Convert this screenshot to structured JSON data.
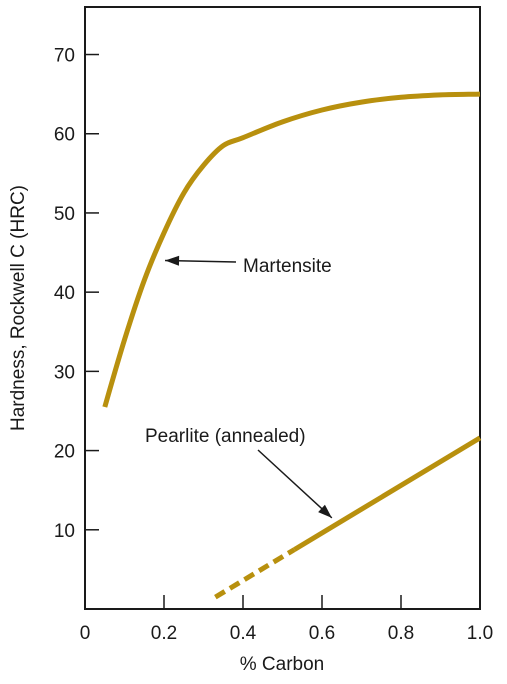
{
  "chart_data": {
    "type": "line",
    "title": "",
    "xlabel": "% Carbon",
    "ylabel": "Hardness, Rockwell C (HRC)",
    "xlim": [
      0,
      1.0
    ],
    "ylim": [
      0,
      76
    ],
    "grid": false,
    "x_ticks": [
      0,
      0.2,
      0.4,
      0.6,
      0.8,
      1.0
    ],
    "x_tick_labels": [
      "0",
      "0.2",
      "0.4",
      "0.6",
      "0.8",
      "1.0"
    ],
    "y_ticks": [
      10,
      20,
      30,
      40,
      50,
      60,
      70
    ],
    "y_tick_labels": [
      "10",
      "20",
      "30",
      "40",
      "50",
      "60",
      "70"
    ],
    "line_color": "#b8900e",
    "series": [
      {
        "name": "Martensite",
        "x": [
          0.05,
          0.1,
          0.15,
          0.2,
          0.25,
          0.3,
          0.35,
          0.4,
          0.5,
          0.6,
          0.7,
          0.8,
          0.9,
          1.0
        ],
        "y": [
          25.5,
          34,
          41.5,
          47.5,
          52.5,
          56,
          58.5,
          59.5,
          61.5,
          63,
          64,
          64.6,
          64.9,
          65
        ]
      },
      {
        "name": "Pearlite (annealed)",
        "dashed_segment": {
          "x": [
            0.33,
            0.53
          ],
          "y": [
            1.5,
            7.5
          ]
        },
        "x": [
          0.53,
          1.0
        ],
        "y": [
          7.5,
          21.6
        ]
      }
    ],
    "annotations": [
      {
        "text": "Martensite",
        "target_x": 0.19,
        "target_y": 44
      },
      {
        "text": "Pearlite (annealed)",
        "target_x": 0.63,
        "target_y": 11
      }
    ]
  }
}
